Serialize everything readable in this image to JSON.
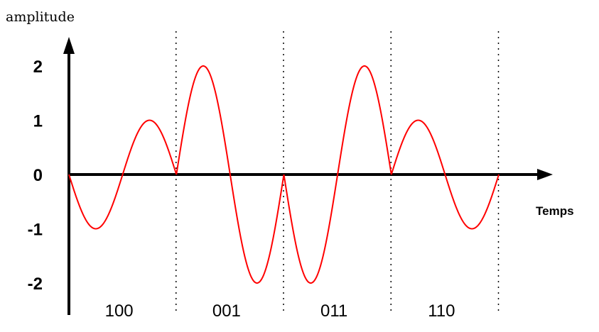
{
  "chart_data": {
    "type": "line",
    "ylabel": "amplitude",
    "xlabel": "Temps",
    "ylim": [
      -2,
      2
    ],
    "yticks": [
      2,
      1,
      0,
      -1,
      -2
    ],
    "ytick_labels": [
      "2",
      "1",
      "0",
      "-1",
      "-2"
    ],
    "xlim": [
      0,
      4
    ],
    "segments": [
      {
        "bits": "100",
        "amplitude": 1,
        "phase": "π"
      },
      {
        "bits": "001",
        "amplitude": 2,
        "phase": "0"
      },
      {
        "bits": "011",
        "amplitude": 2,
        "phase": "π"
      },
      {
        "bits": "110",
        "amplitude": 1,
        "phase": "0"
      }
    ],
    "boundaries": [
      1,
      2,
      3,
      4
    ],
    "grid": false,
    "colors": {
      "signal": "#ff0000",
      "axes": "#000000",
      "dividers": "#000000"
    }
  }
}
